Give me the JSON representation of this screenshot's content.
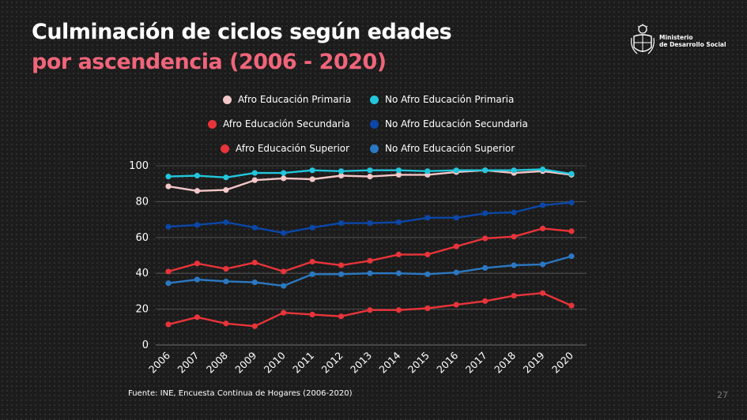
{
  "slide": {
    "title_line1": "Culminación de ciclos según edades",
    "title_line2": "por ascendencia (2006 - 2020)",
    "source": "Fuente: INE, Encuesta Continua de Hogares (2006-2020)",
    "page_number": "27",
    "logo_text_line1": "Ministerio",
    "logo_text_line2": "de Desarrollo Social"
  },
  "chart_data": {
    "type": "line",
    "title": "",
    "xlabel": "",
    "ylabel": "",
    "ylim": [
      0,
      100
    ],
    "y_ticks": [
      "0",
      "20",
      "40",
      "60",
      "80",
      "100"
    ],
    "grid": true,
    "legend_position": "top",
    "categories": [
      "2006",
      "2007",
      "2008",
      "2009",
      "2010",
      "2011",
      "2012",
      "2013",
      "2014",
      "2015",
      "2016",
      "2017",
      "2018",
      "2019",
      "2020"
    ],
    "series": [
      {
        "name": "Afro Educación Primaria",
        "color": "#f3c7c7",
        "values": [
          88.5,
          86,
          86.5,
          92,
          93,
          92.5,
          94.5,
          94,
          95,
          95,
          96.5,
          97.5,
          96,
          97,
          95
        ]
      },
      {
        "name": "No Afro Educación Primaria",
        "color": "#22c6dc",
        "values": [
          94,
          94.5,
          93.5,
          96,
          96,
          97.5,
          97,
          97.5,
          97.5,
          97,
          97.5,
          97.5,
          97.5,
          98,
          95.5
        ]
      },
      {
        "name": "Afro Educación Secundaria",
        "color": "#e8343a",
        "values": [
          41,
          45.5,
          42.5,
          46,
          41,
          46.5,
          44.5,
          47,
          50.5,
          50.5,
          55,
          59.5,
          60.5,
          65,
          63.5
        ]
      },
      {
        "name": "No Afro Educación Secundaria",
        "color": "#0b47a8",
        "values": [
          66,
          67,
          68.5,
          65.5,
          62.5,
          65.5,
          68,
          68,
          68.5,
          71,
          71,
          73.5,
          74,
          78,
          79.5
        ]
      },
      {
        "name": "Afro Educación Superior",
        "color": "#e8343a",
        "values": [
          11.5,
          15.5,
          12,
          10.5,
          18,
          17,
          16,
          19.5,
          19.5,
          20.5,
          22.5,
          24.5,
          27.5,
          29,
          22
        ]
      },
      {
        "name": "No Afro Educación Superior",
        "color": "#2b78c2",
        "values": [
          34.5,
          36.5,
          35.5,
          35,
          33,
          39.5,
          39.5,
          40,
          40,
          39.5,
          40.5,
          43,
          44.5,
          45,
          49.5
        ]
      }
    ]
  }
}
